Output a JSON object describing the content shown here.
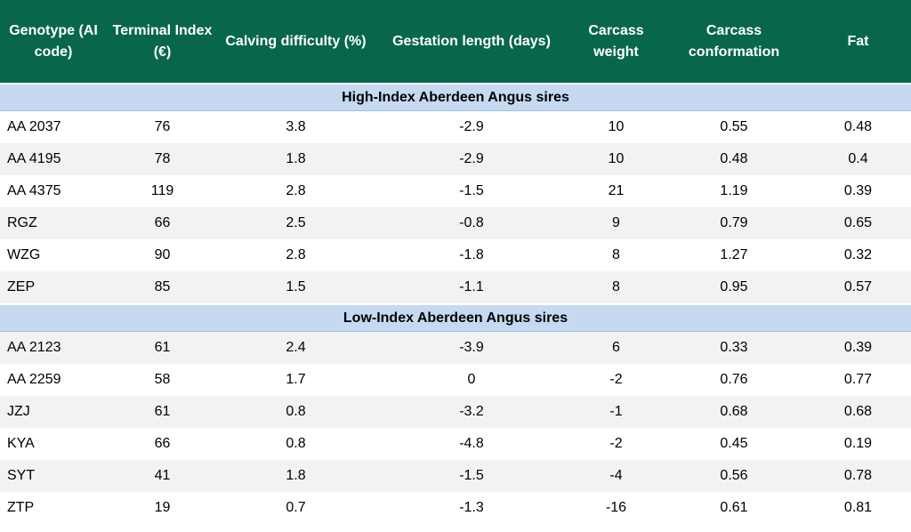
{
  "table": {
    "columns": [
      "Genotype (AI code)",
      "Terminal Index (€)",
      "Calving difficulty (%)",
      "Gestation length (days)",
      "Carcass weight",
      "Carcass conformation",
      "Fat"
    ],
    "sections": [
      {
        "title": "High-Index Aberdeen Angus sires",
        "rows": [
          [
            "AA 2037",
            "76",
            "3.8",
            "-2.9",
            "10",
            "0.55",
            "0.48"
          ],
          [
            "AA 4195",
            "78",
            "1.8",
            "-2.9",
            "10",
            "0.48",
            "0.4"
          ],
          [
            "AA 4375",
            "119",
            "2.8",
            "-1.5",
            "21",
            "1.19",
            "0.39"
          ],
          [
            "RGZ",
            "66",
            "2.5",
            "-0.8",
            "9",
            "0.79",
            "0.65"
          ],
          [
            "WZG",
            "90",
            "2.8",
            "-1.8",
            "8",
            "1.27",
            "0.32"
          ],
          [
            "ZEP",
            "85",
            "1.5",
            "-1.1",
            "8",
            "0.95",
            "0.57"
          ]
        ]
      },
      {
        "title": "Low-Index Aberdeen Angus sires",
        "rows": [
          [
            "AA 2123",
            "61",
            "2.4",
            "-3.9",
            "6",
            "0.33",
            "0.39"
          ],
          [
            "AA 2259",
            "58",
            "1.7",
            "0",
            "-2",
            "0.76",
            "0.77"
          ],
          [
            "JZJ",
            "61",
            "0.8",
            "-3.2",
            "-1",
            "0.68",
            "0.68"
          ],
          [
            "KYA",
            "66",
            "0.8",
            "-4.8",
            "-2",
            "0.45",
            "0.19"
          ],
          [
            "SYT",
            "41",
            "1.8",
            "-1.5",
            "-4",
            "0.56",
            "0.78"
          ],
          [
            "ZTP",
            "19",
            "0.7",
            "-1.3",
            "-16",
            "0.61",
            "0.81"
          ]
        ]
      }
    ]
  },
  "colors": {
    "header_bg": "#08664C",
    "header_text": "#FFFFFF",
    "band_bg": "#C5D9F1",
    "band_border": "#A3BEE2",
    "row_alt_bg": "#F2F2F2",
    "body_text": "#000000"
  }
}
